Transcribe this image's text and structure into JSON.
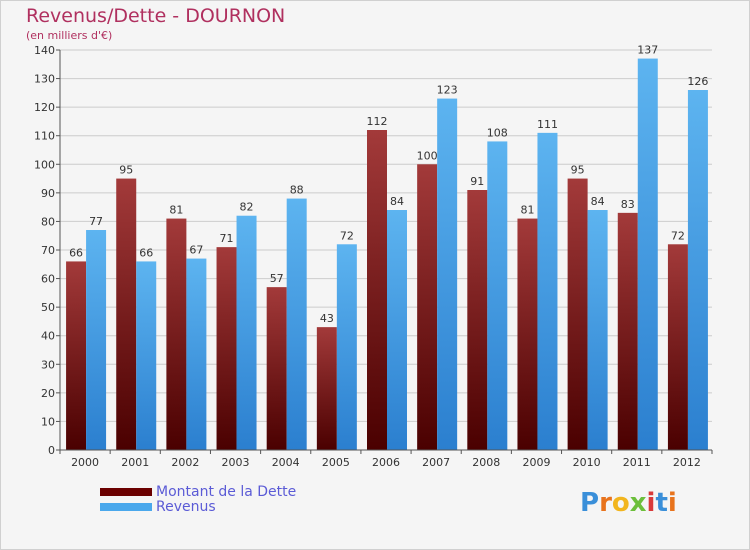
{
  "title": "Revenus/Dette - DOURNON",
  "subtitle": "(en milliers d'€)",
  "colors": {
    "dette": "#7a0a0a",
    "revenus": "#4aa8ec",
    "title": "#b0305f",
    "legend_text": "#5b5bd6"
  },
  "legend": [
    {
      "label": "Montant de la Dette",
      "color": "#6b0000"
    },
    {
      "label": "Revenus",
      "color": "#4aa8ec"
    }
  ],
  "logo": {
    "text": "Proxiti"
  },
  "chart_data": {
    "type": "bar",
    "categories": [
      "2000",
      "2001",
      "2002",
      "2003",
      "2004",
      "2005",
      "2006",
      "2007",
      "2008",
      "2009",
      "2010",
      "2011",
      "2012"
    ],
    "series": [
      {
        "name": "Montant de la Dette",
        "values": [
          66,
          95,
          81,
          71,
          57,
          43,
          112,
          100,
          91,
          81,
          95,
          83,
          72
        ]
      },
      {
        "name": "Revenus",
        "values": [
          77,
          66,
          67,
          82,
          88,
          72,
          84,
          123,
          108,
          111,
          84,
          137,
          126
        ]
      }
    ],
    "ylim": [
      0,
      140
    ],
    "yticks": [
      0,
      10,
      20,
      30,
      40,
      50,
      60,
      70,
      80,
      90,
      100,
      110,
      120,
      130,
      140
    ],
    "grid": true,
    "legend_position": "bottom-left"
  }
}
